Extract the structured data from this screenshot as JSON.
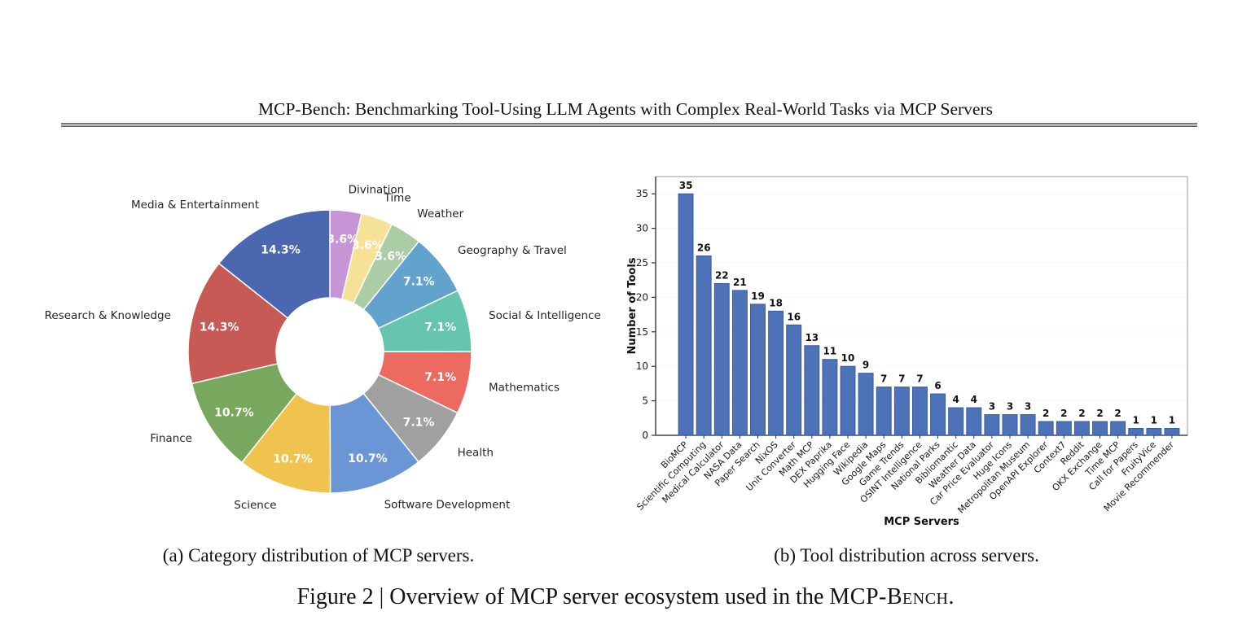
{
  "header": {
    "title": "MCP-Bench: Benchmarking Tool-Using LLM Agents with Complex Real-World Tasks via MCP Servers"
  },
  "captions": {
    "a": "(a) Category distribution of MCP servers.",
    "b": "(b) Tool distribution across servers.",
    "figure_prefix": "Figure 2 | Overview of MCP server ecosystem used in the ",
    "figure_brand": "MCP-Bench",
    "figure_suffix": "."
  },
  "chart_data": [
    {
      "id": "category-distribution-pie",
      "type": "pie",
      "style": "donut",
      "direction": "clockwise",
      "start_angle": "12-oclock",
      "slices": [
        {
          "label": "Divination",
          "pct": 3.6,
          "pct_label": "3.6%",
          "color": "#c795d6"
        },
        {
          "label": "Time",
          "pct": 3.6,
          "pct_label": "3.6%",
          "color": "#f6e296"
        },
        {
          "label": "Weather",
          "pct": 3.6,
          "pct_label": "3.6%",
          "color": "#abcda5"
        },
        {
          "label": "Geography & Travel",
          "pct": 7.1,
          "pct_label": "7.1%",
          "color": "#61a3cc"
        },
        {
          "label": "Social & Intelligence",
          "pct": 7.1,
          "pct_label": "7.1%",
          "color": "#66c5ae"
        },
        {
          "label": "Mathematics",
          "pct": 7.1,
          "pct_label": "7.1%",
          "color": "#ec6a60"
        },
        {
          "label": "Health",
          "pct": 7.1,
          "pct_label": "7.1%",
          "color": "#a0a0a0"
        },
        {
          "label": "Software Development",
          "pct": 10.7,
          "pct_label": "10.7%",
          "color": "#6b96d5"
        },
        {
          "label": "Science",
          "pct": 10.7,
          "pct_label": "10.7%",
          "color": "#f0c34e"
        },
        {
          "label": "Finance",
          "pct": 10.7,
          "pct_label": "10.7%",
          "color": "#77a85e"
        },
        {
          "label": "Research & Knowledge",
          "pct": 14.3,
          "pct_label": "14.3%",
          "color": "#c75a54"
        },
        {
          "label": "Media & Entertainment",
          "pct": 14.3,
          "pct_label": "14.3%",
          "color": "#4a67b0"
        }
      ]
    },
    {
      "id": "tool-distribution-bar",
      "type": "bar",
      "xlabel": "MCP Servers",
      "ylabel": "Number of Tools",
      "ylim": [
        0,
        37.5
      ],
      "yticks": [
        0,
        5,
        10,
        15,
        20,
        25,
        30,
        35
      ],
      "grid": "horizontal-dotted",
      "bar_color": "#4d72b8",
      "bar_edge_color": "#3a5a9e",
      "categories": [
        "BioMCP",
        "Scientific Computing",
        "Medical Calculator",
        "NASA Data",
        "Paper Search",
        "NixOS",
        "Unit Converter",
        "Math MCP",
        "DEX Paprika",
        "Hugging Face",
        "Wikipedia",
        "Google Maps",
        "Game Trends",
        "OSINT Intelligence",
        "National Parks",
        "Bibliomantic",
        "Weather Data",
        "Car Price Evaluator",
        "Huge Icons",
        "Metropolitan Museum",
        "OpenAPI Explorer",
        "Context7",
        "Reddit",
        "OKX Exchange",
        "Time MCP",
        "Call for Papers",
        "FruityVice",
        "Movie Recommender"
      ],
      "values": [
        35,
        26,
        22,
        21,
        19,
        18,
        16,
        13,
        11,
        10,
        9,
        7,
        7,
        7,
        6,
        4,
        4,
        3,
        3,
        3,
        2,
        2,
        2,
        2,
        2,
        1,
        1,
        1
      ]
    }
  ]
}
